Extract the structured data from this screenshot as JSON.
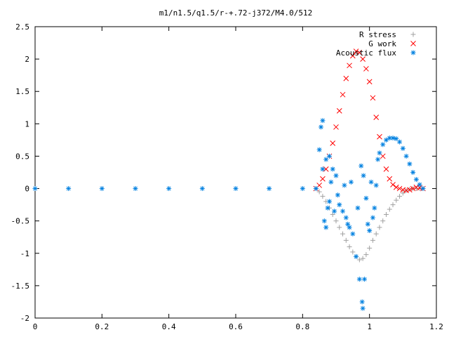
{
  "chart_data": {
    "type": "scatter",
    "title": "m1/n1.5/q1.5/r-+.72-j372/M4.0/512",
    "xlabel": "",
    "ylabel": "",
    "xlim": [
      0,
      1.2
    ],
    "ylim": [
      -2,
      2.5
    ],
    "x_ticks": [
      "0",
      "0.2",
      "0.4",
      "0.6",
      "0.8",
      "1",
      "1.2"
    ],
    "y_ticks": [
      "2.5",
      "2",
      "1.5",
      "1",
      "0.5",
      "0",
      "-0.5",
      "-1",
      "-1.5",
      "-2"
    ],
    "grid": false,
    "legend_position": "top-right",
    "series": [
      {
        "name": "R stress",
        "marker": "+",
        "color": "#a0a0a0",
        "points": [
          [
            0.84,
            0.0
          ],
          [
            0.85,
            -0.05
          ],
          [
            0.86,
            -0.12
          ],
          [
            0.87,
            -0.2
          ],
          [
            0.88,
            -0.3
          ],
          [
            0.89,
            -0.4
          ],
          [
            0.9,
            -0.5
          ],
          [
            0.91,
            -0.6
          ],
          [
            0.92,
            -0.7
          ],
          [
            0.93,
            -0.8
          ],
          [
            0.94,
            -0.9
          ],
          [
            0.95,
            -0.98
          ],
          [
            0.96,
            -1.05
          ],
          [
            0.97,
            -1.1
          ],
          [
            0.98,
            -1.08
          ],
          [
            0.99,
            -1.02
          ],
          [
            1.0,
            -0.92
          ],
          [
            1.01,
            -0.8
          ],
          [
            1.02,
            -0.7
          ],
          [
            1.03,
            -0.6
          ],
          [
            1.04,
            -0.5
          ],
          [
            1.05,
            -0.4
          ],
          [
            1.06,
            -0.32
          ],
          [
            1.07,
            -0.25
          ],
          [
            1.08,
            -0.18
          ],
          [
            1.09,
            -0.12
          ],
          [
            1.1,
            -0.07
          ],
          [
            1.11,
            -0.03
          ],
          [
            1.12,
            -0.01
          ],
          [
            1.13,
            0.0
          ],
          [
            1.14,
            0.0
          ],
          [
            1.15,
            0.0
          ],
          [
            1.16,
            0.0
          ]
        ]
      },
      {
        "name": "G work",
        "marker": "x",
        "color": "#ff0000",
        "points": [
          [
            0.84,
            0.0
          ],
          [
            0.85,
            0.05
          ],
          [
            0.86,
            0.15
          ],
          [
            0.87,
            0.3
          ],
          [
            0.88,
            0.5
          ],
          [
            0.89,
            0.7
          ],
          [
            0.9,
            0.95
          ],
          [
            0.91,
            1.2
          ],
          [
            0.92,
            1.45
          ],
          [
            0.93,
            1.7
          ],
          [
            0.94,
            1.9
          ],
          [
            0.95,
            2.05
          ],
          [
            0.96,
            2.12
          ],
          [
            0.97,
            2.1
          ],
          [
            0.98,
            2.0
          ],
          [
            0.99,
            1.85
          ],
          [
            1.0,
            1.65
          ],
          [
            1.01,
            1.4
          ],
          [
            1.02,
            1.1
          ],
          [
            1.03,
            0.8
          ],
          [
            1.04,
            0.5
          ],
          [
            1.05,
            0.3
          ],
          [
            1.06,
            0.15
          ],
          [
            1.07,
            0.06
          ],
          [
            1.08,
            0.02
          ],
          [
            1.09,
            0.0
          ],
          [
            1.1,
            -0.02
          ],
          [
            1.11,
            -0.03
          ],
          [
            1.12,
            -0.02
          ],
          [
            1.13,
            0.0
          ],
          [
            1.14,
            0.02
          ],
          [
            1.15,
            0.01
          ],
          [
            1.16,
            0.0
          ]
        ]
      },
      {
        "name": "Acoustic flux",
        "marker": "*",
        "color": "#0080e0",
        "points": [
          [
            0.0,
            0.0
          ],
          [
            0.1,
            0.0
          ],
          [
            0.2,
            0.0
          ],
          [
            0.3,
            0.0
          ],
          [
            0.4,
            0.0
          ],
          [
            0.5,
            0.0
          ],
          [
            0.6,
            0.0
          ],
          [
            0.7,
            0.0
          ],
          [
            0.8,
            0.0
          ],
          [
            0.84,
            0.0
          ],
          [
            0.85,
            0.6
          ],
          [
            0.855,
            0.95
          ],
          [
            0.86,
            1.05
          ],
          [
            0.86,
            0.3
          ],
          [
            0.865,
            -0.5
          ],
          [
            0.87,
            -0.6
          ],
          [
            0.87,
            0.45
          ],
          [
            0.875,
            -0.3
          ],
          [
            0.88,
            0.5
          ],
          [
            0.88,
            -0.2
          ],
          [
            0.885,
            0.1
          ],
          [
            0.89,
            0.3
          ],
          [
            0.895,
            -0.35
          ],
          [
            0.9,
            0.2
          ],
          [
            0.905,
            -0.1
          ],
          [
            0.91,
            -0.25
          ],
          [
            0.92,
            -0.35
          ],
          [
            0.925,
            0.05
          ],
          [
            0.93,
            -0.45
          ],
          [
            0.935,
            -0.55
          ],
          [
            0.94,
            -0.6
          ],
          [
            0.945,
            0.1
          ],
          [
            0.95,
            -0.7
          ],
          [
            0.96,
            -1.05
          ],
          [
            0.965,
            -0.3
          ],
          [
            0.97,
            -1.4
          ],
          [
            0.975,
            0.35
          ],
          [
            0.978,
            -1.75
          ],
          [
            0.98,
            -1.85
          ],
          [
            0.982,
            0.2
          ],
          [
            0.985,
            -1.4
          ],
          [
            0.99,
            -0.15
          ],
          [
            0.995,
            -0.55
          ],
          [
            1.0,
            -0.65
          ],
          [
            1.005,
            0.1
          ],
          [
            1.01,
            -0.45
          ],
          [
            1.015,
            -0.3
          ],
          [
            1.02,
            0.05
          ],
          [
            1.025,
            0.45
          ],
          [
            1.03,
            0.55
          ],
          [
            1.04,
            0.68
          ],
          [
            1.05,
            0.75
          ],
          [
            1.06,
            0.78
          ],
          [
            1.07,
            0.78
          ],
          [
            1.08,
            0.77
          ],
          [
            1.09,
            0.72
          ],
          [
            1.1,
            0.62
          ],
          [
            1.11,
            0.5
          ],
          [
            1.12,
            0.38
          ],
          [
            1.13,
            0.25
          ],
          [
            1.14,
            0.14
          ],
          [
            1.15,
            0.06
          ],
          [
            1.16,
            0.0
          ]
        ]
      }
    ]
  }
}
